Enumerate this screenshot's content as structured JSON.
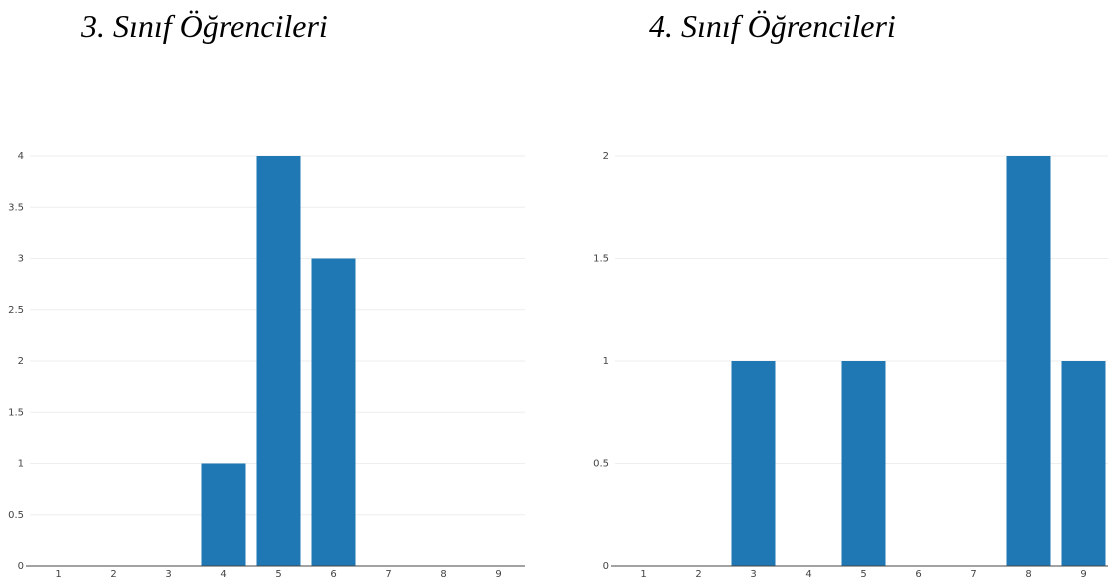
{
  "colors": {
    "bar": "#1f77b4",
    "grid": "#eeeeee",
    "axis": "#444444",
    "text": "#444444"
  },
  "chart_data": [
    {
      "type": "bar",
      "title": "3. Sınıf Öğrencileri",
      "xlabel": "",
      "ylabel": "",
      "categories": [
        "1",
        "2",
        "3",
        "4",
        "5",
        "6",
        "7",
        "8",
        "9"
      ],
      "values": [
        0,
        0,
        0,
        1,
        4,
        3,
        0,
        0,
        0
      ],
      "ylim": [
        0,
        4
      ],
      "yticks": [
        "0",
        "0.5",
        "1",
        "1.5",
        "2",
        "2.5",
        "3",
        "3.5",
        "4"
      ],
      "grid": true,
      "legend": "none"
    },
    {
      "type": "bar",
      "title": "4. Sınıf Öğrencileri",
      "xlabel": "",
      "ylabel": "",
      "categories": [
        "1",
        "2",
        "3",
        "4",
        "5",
        "6",
        "7",
        "8",
        "9"
      ],
      "values": [
        0,
        0,
        1,
        0,
        1,
        0,
        0,
        2,
        1
      ],
      "ylim": [
        0,
        2
      ],
      "yticks": [
        "0",
        "0.5",
        "1",
        "1.5",
        "2"
      ],
      "grid": true,
      "legend": "none"
    }
  ]
}
